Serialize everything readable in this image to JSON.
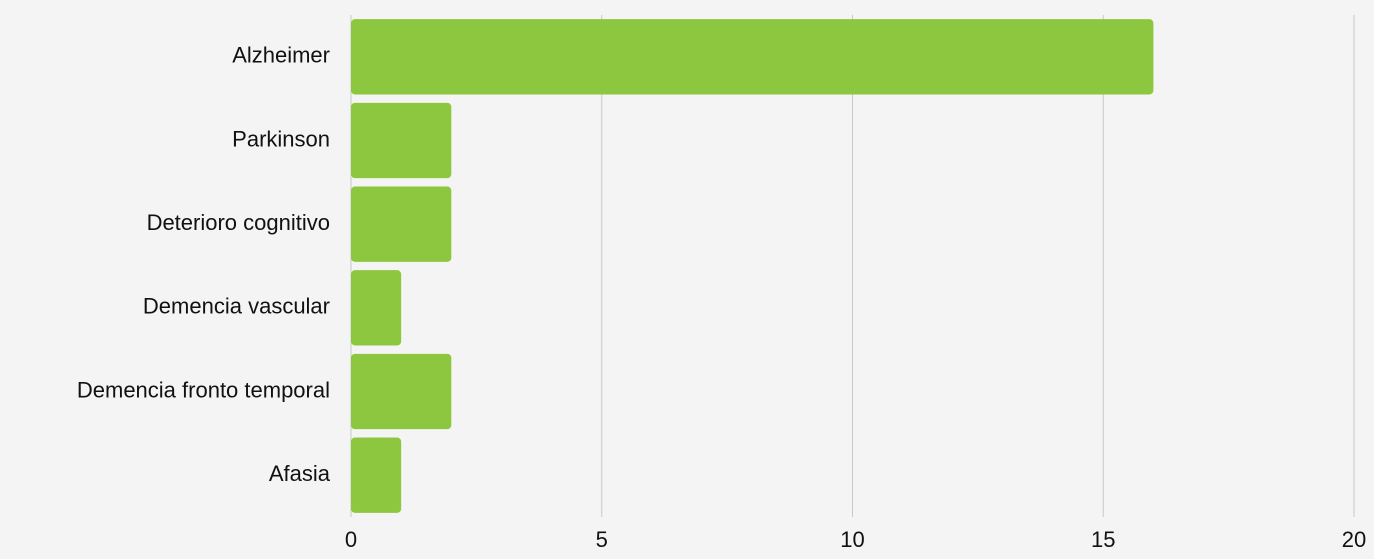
{
  "chart_data": {
    "type": "barh",
    "categories": [
      "Alzheimer",
      "Parkinson",
      "Deterioro cognitivo",
      "Demencia vascular",
      "Demencia fronto temporal",
      "Afasia"
    ],
    "values": [
      16,
      2,
      2,
      1,
      2,
      1
    ],
    "color": "#8dc63f",
    "xlim": [
      0,
      20
    ],
    "xticks": [
      0,
      5,
      10,
      15,
      20
    ],
    "grid": true
  }
}
